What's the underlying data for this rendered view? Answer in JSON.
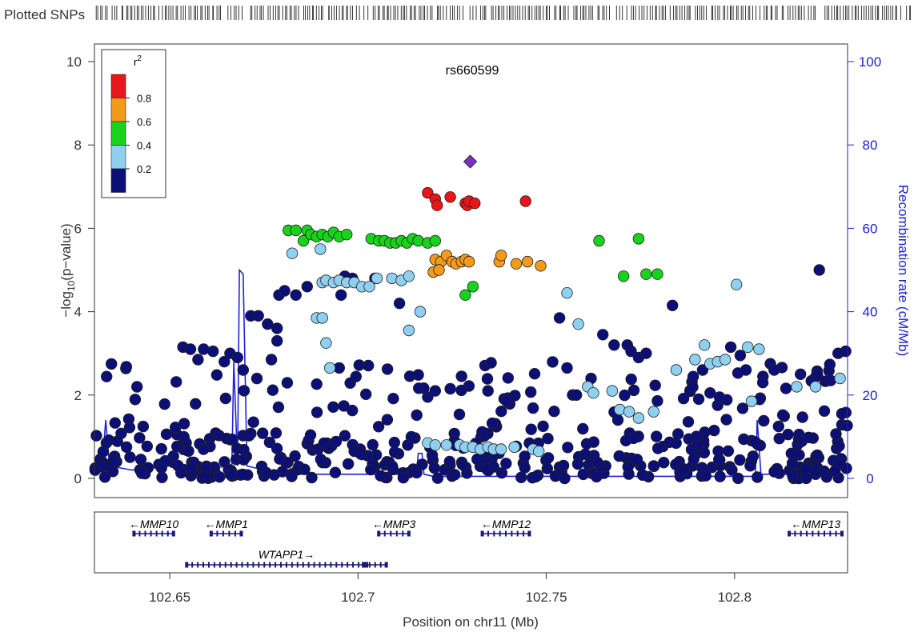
{
  "chart_data": {
    "type": "scatter",
    "title": "",
    "lead_snp": "rs660599",
    "plotted_snps_label": "Plotted SNPs",
    "xlabel": "Position on chr11 (Mb)",
    "ylabel": "−log₁₀(p−value)",
    "ylabel_prefix": "−log",
    "ylabel_sub": "10",
    "ylabel_suffix": "(p−value)",
    "y2label": "Recombination rate (cM/Mb)",
    "xlim": [
      102.63,
      102.83
    ],
    "ylim": [
      0,
      10
    ],
    "y2lim": [
      0,
      100
    ],
    "x_ticks": [
      "102.65",
      "102.7",
      "102.75",
      "102.8"
    ],
    "x_tick_values": [
      102.65,
      102.7,
      102.75,
      102.8
    ],
    "y_ticks": [
      "0",
      "2",
      "4",
      "6",
      "8",
      "10"
    ],
    "y_tick_values": [
      0,
      2,
      4,
      6,
      8,
      10
    ],
    "y2_ticks": [
      "0",
      "20",
      "40",
      "60",
      "80",
      "100"
    ],
    "y2_tick_values": [
      0,
      20,
      40,
      60,
      80,
      100
    ],
    "legend": {
      "title": "r²",
      "title_base": "r",
      "title_sup": "2",
      "labels": [
        "0.8",
        "0.6",
        "0.4",
        "0.2"
      ],
      "colors": [
        "#e8161b",
        "#f39a1b",
        "#17d31b",
        "#8fd0f0",
        "#0c0f75"
      ],
      "position": "top-left"
    },
    "lead_point": {
      "x": 102.7298,
      "y": 7.6,
      "color": "#7a2fc4"
    },
    "red_points": [
      [
        102.7185,
        6.85
      ],
      [
        102.7205,
        6.7
      ],
      [
        102.721,
        6.55
      ],
      [
        102.7245,
        6.75
      ],
      [
        102.7285,
        6.6
      ],
      [
        102.729,
        6.55
      ],
      [
        102.7295,
        6.65
      ],
      [
        102.731,
        6.6
      ],
      [
        102.7445,
        6.65
      ]
    ],
    "orange_points": [
      [
        102.7205,
        5.25
      ],
      [
        102.722,
        5.2
      ],
      [
        102.7235,
        5.35
      ],
      [
        102.725,
        5.2
      ],
      [
        102.726,
        5.15
      ],
      [
        102.7275,
        5.2
      ],
      [
        102.7285,
        5.25
      ],
      [
        102.7295,
        5.2
      ],
      [
        102.7375,
        5.2
      ],
      [
        102.738,
        5.35
      ],
      [
        102.742,
        5.15
      ],
      [
        102.745,
        5.2
      ],
      [
        102.7485,
        5.1
      ],
      [
        102.72,
        4.95
      ],
      [
        102.7215,
        5.0
      ]
    ],
    "green_points": [
      [
        102.6815,
        5.95
      ],
      [
        102.6835,
        5.95
      ],
      [
        102.6855,
        5.7
      ],
      [
        102.6865,
        5.95
      ],
      [
        102.6875,
        5.85
      ],
      [
        102.689,
        5.8
      ],
      [
        102.6905,
        5.85
      ],
      [
        102.692,
        5.8
      ],
      [
        102.6935,
        5.9
      ],
      [
        102.695,
        5.8
      ],
      [
        102.697,
        5.85
      ],
      [
        102.7035,
        5.75
      ],
      [
        102.7055,
        5.7
      ],
      [
        102.707,
        5.7
      ],
      [
        102.7085,
        5.65
      ],
      [
        102.71,
        5.65
      ],
      [
        102.7115,
        5.7
      ],
      [
        102.713,
        5.65
      ],
      [
        102.7145,
        5.75
      ],
      [
        102.716,
        5.7
      ],
      [
        102.7185,
        5.65
      ],
      [
        102.7205,
        5.7
      ],
      [
        102.7285,
        4.4
      ],
      [
        102.7305,
        4.6
      ],
      [
        102.764,
        5.7
      ],
      [
        102.7745,
        5.75
      ],
      [
        102.7705,
        4.85
      ],
      [
        102.7765,
        4.9
      ],
      [
        102.7795,
        4.9
      ]
    ],
    "lightblue_points": [
      [
        102.6825,
        5.4
      ],
      [
        102.69,
        5.5
      ],
      [
        102.6905,
        4.7
      ],
      [
        102.6915,
        4.75
      ],
      [
        102.6935,
        4.7
      ],
      [
        102.695,
        4.75
      ],
      [
        102.697,
        4.7
      ],
      [
        102.699,
        4.7
      ],
      [
        102.701,
        4.6
      ],
      [
        102.703,
        4.6
      ],
      [
        102.705,
        4.8
      ],
      [
        102.709,
        4.8
      ],
      [
        102.7115,
        4.75
      ],
      [
        102.7135,
        4.85
      ],
      [
        102.7165,
        4.0
      ],
      [
        102.7135,
        3.55
      ],
      [
        102.689,
        3.85
      ],
      [
        102.6905,
        3.85
      ],
      [
        102.6915,
        3.25
      ],
      [
        102.6925,
        2.65
      ],
      [
        102.7185,
        0.85
      ],
      [
        102.7205,
        0.8
      ],
      [
        102.7235,
        0.8
      ],
      [
        102.727,
        0.8
      ],
      [
        102.7285,
        0.75
      ],
      [
        102.7305,
        0.75
      ],
      [
        102.7325,
        0.7
      ],
      [
        102.7345,
        0.75
      ],
      [
        102.736,
        0.7
      ],
      [
        102.738,
        0.7
      ],
      [
        102.7415,
        0.75
      ],
      [
        102.7465,
        0.7
      ],
      [
        102.748,
        0.65
      ],
      [
        102.7555,
        4.45
      ],
      [
        102.7585,
        3.7
      ],
      [
        102.761,
        2.2
      ],
      [
        102.7625,
        2.05
      ],
      [
        102.7675,
        2.1
      ],
      [
        102.7695,
        1.65
      ],
      [
        102.772,
        1.6
      ],
      [
        102.7745,
        1.45
      ],
      [
        102.7785,
        1.6
      ],
      [
        102.7845,
        2.6
      ],
      [
        102.7895,
        2.85
      ],
      [
        102.792,
        3.2
      ],
      [
        102.7935,
        2.75
      ],
      [
        102.7955,
        2.8
      ],
      [
        102.7975,
        2.85
      ],
      [
        102.8005,
        4.65
      ],
      [
        102.8035,
        3.15
      ],
      [
        102.8065,
        3.1
      ],
      [
        102.8045,
        1.85
      ],
      [
        102.8165,
        2.2
      ],
      [
        102.8215,
        2.2
      ],
      [
        102.828,
        2.4
      ]
    ],
    "recombination_rate": [
      [
        102.63,
        2
      ],
      [
        102.632,
        2
      ],
      [
        102.633,
        14
      ],
      [
        102.634,
        3
      ],
      [
        102.64,
        2
      ],
      [
        102.65,
        3
      ],
      [
        102.66,
        2
      ],
      [
        102.665,
        3
      ],
      [
        102.6665,
        3
      ],
      [
        102.667,
        28
      ],
      [
        102.668,
        3
      ],
      [
        102.6685,
        50
      ],
      [
        102.6695,
        49
      ],
      [
        102.6705,
        3
      ],
      [
        102.675,
        2
      ],
      [
        102.68,
        1
      ],
      [
        102.685,
        1
      ],
      [
        102.69,
        1
      ],
      [
        102.695,
        1
      ],
      [
        102.7,
        1
      ],
      [
        102.705,
        1
      ],
      [
        102.71,
        1
      ],
      [
        102.7155,
        1
      ],
      [
        102.716,
        6
      ],
      [
        102.717,
        6
      ],
      [
        102.7175,
        1
      ],
      [
        102.72,
        0.5
      ],
      [
        102.725,
        0.5
      ],
      [
        102.73,
        0.5
      ],
      [
        102.735,
        0.5
      ],
      [
        102.74,
        0.5
      ],
      [
        102.745,
        0.5
      ],
      [
        102.75,
        0.5
      ],
      [
        102.76,
        0.5
      ],
      [
        102.77,
        0.5
      ],
      [
        102.78,
        0.5
      ],
      [
        102.79,
        0.5
      ],
      [
        102.8,
        0.5
      ],
      [
        102.8055,
        0.5
      ],
      [
        102.806,
        14
      ],
      [
        102.807,
        1
      ],
      [
        102.81,
        1
      ],
      [
        102.815,
        1
      ],
      [
        102.82,
        1
      ],
      [
        102.825,
        1
      ],
      [
        102.83,
        3
      ]
    ],
    "genes": [
      {
        "name": "MMP10",
        "label": "←MMP10",
        "strand": "-",
        "start": 102.6405,
        "end": 102.651
      },
      {
        "name": "MMP1",
        "label": "←MMP1",
        "strand": "-",
        "start": 102.661,
        "end": 102.669
      },
      {
        "name": "MMP3",
        "label": "←MMP3",
        "strand": "-",
        "start": 102.7055,
        "end": 102.7135
      },
      {
        "name": "MMP12",
        "label": "←MMP12",
        "strand": "-",
        "start": 102.733,
        "end": 102.7455
      },
      {
        "name": "MMP13",
        "label": "←MMP13",
        "strand": "-",
        "start": 102.8145,
        "end": 102.8285
      },
      {
        "name": "WTAPP1",
        "label": "WTAPP1→",
        "strand": "+",
        "start": 102.6545,
        "end": 102.7075
      }
    ]
  },
  "colors": {
    "axis": "#333333",
    "recombination_line": "#2222dd",
    "right_axis": "#2222cc",
    "gene": "#1a1a7a"
  }
}
